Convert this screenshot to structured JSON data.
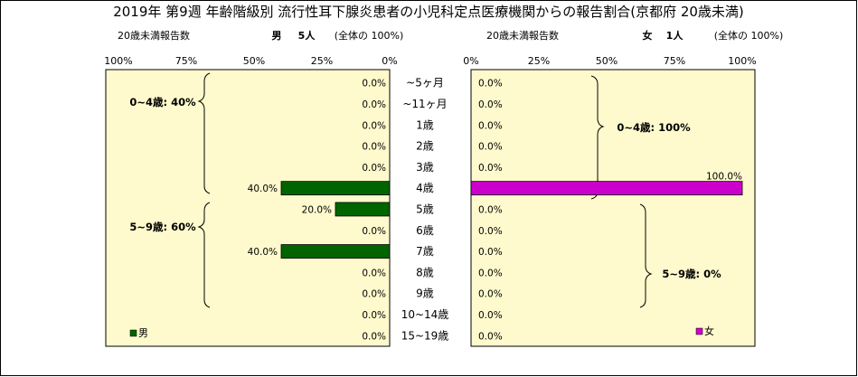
{
  "title": "2019年 第9週 年齢階級別 流行性耳下腺炎患者の小児科定点医療機関からの報告割合(京都府 20歳未満)",
  "left_header": {
    "caption": "20歳未満報告数",
    "label": "男",
    "count": "5人",
    "note": "(全体の 100%)"
  },
  "right_header": {
    "caption": "20歳未満報告数",
    "label": "女",
    "count": "1人",
    "note": "(全体の 100%)"
  },
  "colors": {
    "male": "#006400",
    "female": "#cc00cc",
    "plot_bg": "#fffacd"
  },
  "chart_data": [
    {
      "type": "bar",
      "orientation": "horizontal",
      "direction": "right-to-left",
      "categories": [
        "~5ヶ月",
        "~11ヶ月",
        "1歳",
        "2歳",
        "3歳",
        "4歳",
        "5歳",
        "6歳",
        "7歳",
        "8歳",
        "9歳",
        "10~14歳",
        "15~19歳"
      ],
      "series": [
        {
          "name": "男",
          "values": [
            0,
            0,
            0,
            0,
            0,
            40,
            20,
            0,
            40,
            0,
            0,
            0,
            0
          ]
        }
      ],
      "value_labels": [
        "0.0%",
        "0.0%",
        "0.0%",
        "0.0%",
        "0.0%",
        "40.0%",
        "20.0%",
        "0.0%",
        "40.0%",
        "0.0%",
        "0.0%",
        "0.0%",
        "0.0%"
      ],
      "xlim": [
        0,
        100
      ],
      "xticks": [
        "100%",
        "75%",
        "50%",
        "25%",
        "0%"
      ],
      "annotations": [
        "0~4歳: 40%",
        "5~9歳: 60%"
      ],
      "legend": "bottom-left"
    },
    {
      "type": "bar",
      "orientation": "horizontal",
      "direction": "left-to-right",
      "categories": [
        "~5ヶ月",
        "~11ヶ月",
        "1歳",
        "2歳",
        "3歳",
        "4歳",
        "5歳",
        "6歳",
        "7歳",
        "8歳",
        "9歳",
        "10~14歳",
        "15~19歳"
      ],
      "series": [
        {
          "name": "女",
          "values": [
            0,
            0,
            0,
            0,
            0,
            100,
            0,
            0,
            0,
            0,
            0,
            0,
            0
          ]
        }
      ],
      "value_labels": [
        "0.0%",
        "0.0%",
        "0.0%",
        "0.0%",
        "0.0%",
        "100.0%",
        "0.0%",
        "0.0%",
        "0.0%",
        "0.0%",
        "0.0%",
        "0.0%",
        "0.0%"
      ],
      "xlim": [
        0,
        100
      ],
      "xticks": [
        "0%",
        "25%",
        "50%",
        "75%",
        "100%"
      ],
      "annotations": [
        "0~4歳: 100%",
        "5~9歳: 0%"
      ],
      "legend": "bottom-right"
    }
  ]
}
